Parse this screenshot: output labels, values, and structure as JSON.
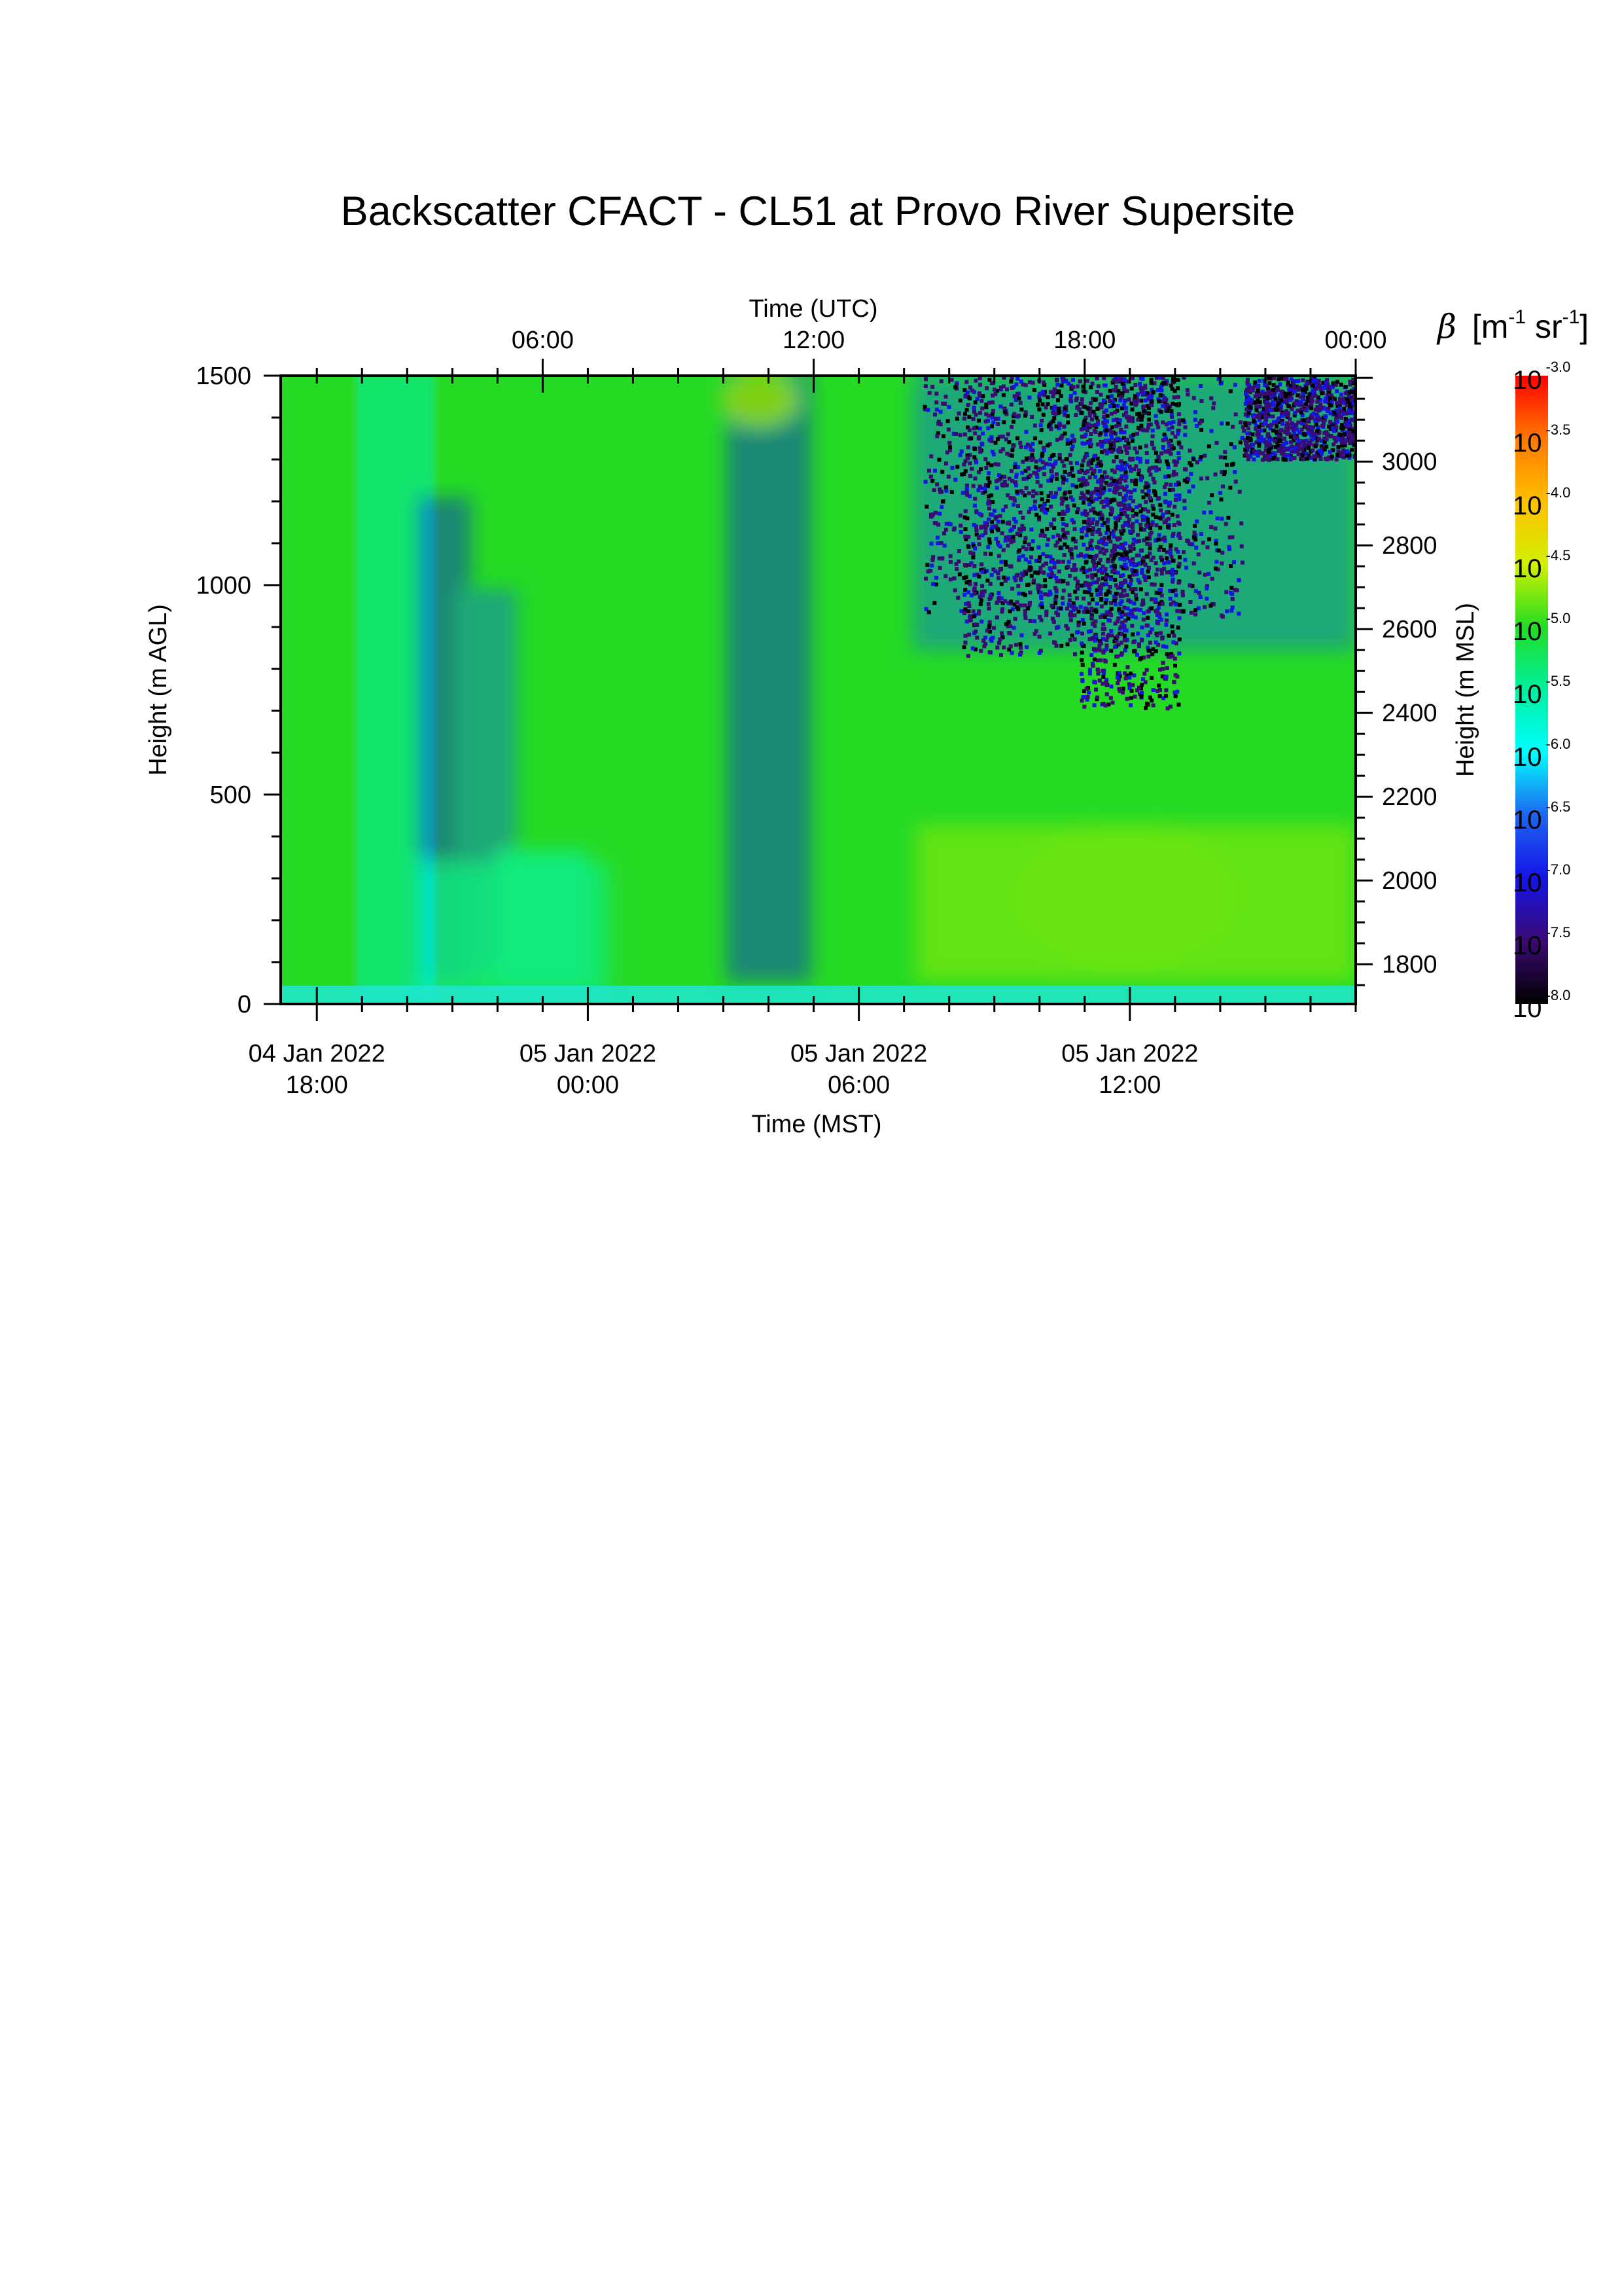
{
  "chart_data": {
    "type": "heatmap",
    "title": "Backscatter CFACT - CL51 at Provo River Supersite",
    "x_axis_bottom": {
      "label": "Time (MST)",
      "ticks": [
        {
          "value": "2022-01-04T18:00",
          "line1": "04 Jan 2022",
          "line2": "18:00"
        },
        {
          "value": "2022-01-05T00:00",
          "line1": "05 Jan 2022",
          "line2": "00:00"
        },
        {
          "value": "2022-01-05T06:00",
          "line1": "05 Jan 2022",
          "line2": "06:00"
        },
        {
          "value": "2022-01-05T12:00",
          "line1": "05 Jan 2022",
          "line2": "12:00"
        }
      ],
      "range": [
        "2022-01-04T17:12",
        "2022-01-05T17:00"
      ]
    },
    "x_axis_top": {
      "label": "Time (UTC)",
      "ticks": [
        {
          "value": "2022-01-05T06:00",
          "label": "06:00"
        },
        {
          "value": "2022-01-05T12:00",
          "label": "12:00"
        },
        {
          "value": "2022-01-05T18:00",
          "label": "18:00"
        },
        {
          "value": "2022-01-06T00:00",
          "label": "00:00"
        }
      ],
      "range": [
        "2022-01-05T00:12",
        "2022-01-06T00:00"
      ]
    },
    "y_axis_left": {
      "label": "Height (m AGL)",
      "ticks": [
        0,
        500,
        1000,
        1500
      ],
      "labels": [
        "0",
        "500",
        "1000",
        "1500"
      ],
      "range": [
        0,
        1500
      ]
    },
    "y_axis_right": {
      "label": "Height (m MSL)",
      "ticks": [
        1800,
        2000,
        2200,
        2400,
        2600,
        2800,
        3000
      ],
      "labels": [
        "1800",
        "2000",
        "2200",
        "2400",
        "2600",
        "2800",
        "3000"
      ],
      "range": [
        1705,
        3205
      ]
    },
    "colorbar": {
      "label_symbol": "β",
      "label_units": "[m-1 sr-1]",
      "scale": "log",
      "range": [
        -8.0,
        -3.0
      ],
      "ticks": [
        -8.0,
        -7.5,
        -7.0,
        -6.5,
        -6.0,
        -5.5,
        -5.0,
        -4.5,
        -4.0,
        -3.5,
        -3.0
      ],
      "tick_base": "10",
      "tick_exponents": [
        "-8.0",
        "-7.5",
        "-7.0",
        "-6.5",
        "-6.0",
        "-5.5",
        "-5.0",
        "-4.5",
        "-4.0",
        "-3.5",
        "-3.0"
      ],
      "colors": [
        "#000000",
        "#3b0a73",
        "#1414e6",
        "#1e64f0",
        "#00ffff",
        "#00f0a0",
        "#22dd22",
        "#d2f000",
        "#ffc000",
        "#ff7800",
        "#ff0000"
      ]
    },
    "grid": false,
    "legend": "colorbar-right"
  }
}
